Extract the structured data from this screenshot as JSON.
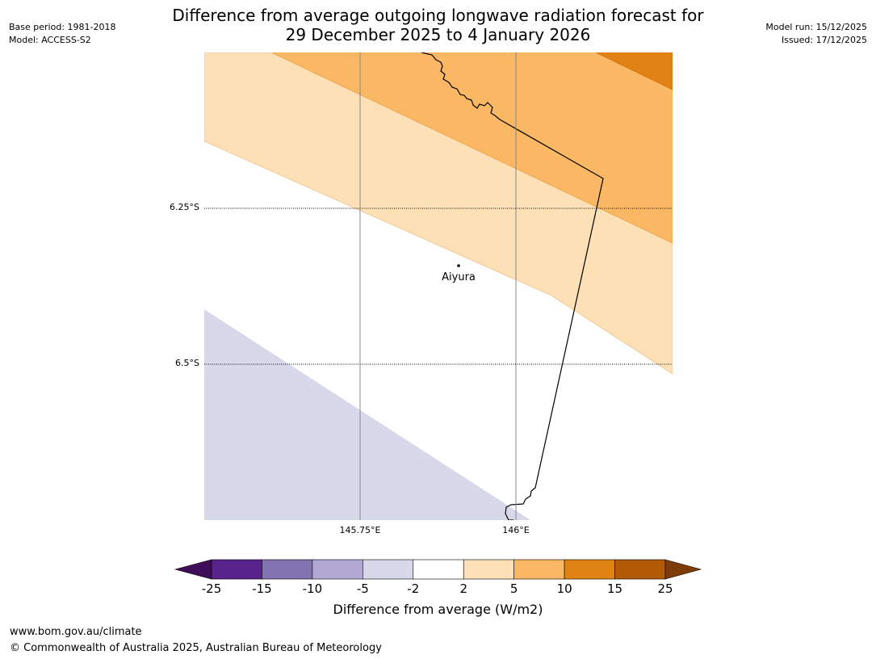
{
  "header": {
    "title_line1": "Difference from average outgoing longwave radiation forecast for",
    "title_line2": "29 December 2025 to 4 January 2026",
    "base_period": "Base period: 1981-2018",
    "model": "Model: ACCESS-S2",
    "model_run": "Model run: 15/12/2025",
    "issued": "Issued: 17/12/2025"
  },
  "map": {
    "lat_labels": [
      "6.25°S",
      "6.5°S"
    ],
    "lon_labels": [
      "145.75°E",
      "146°E"
    ],
    "place": "Aiyura"
  },
  "colorbar": {
    "label": "Difference from average (W/m2)",
    "ticks": [
      "-25",
      "-15",
      "-10",
      "-5",
      "-2",
      "2",
      "5",
      "10",
      "15",
      "25"
    ],
    "colors": [
      "#3f0d59",
      "#58238a",
      "#8373b0",
      "#b1a9d3",
      "#d8d8eb",
      "#ffffff",
      "#fde0b5",
      "#fbb864",
      "#e08214",
      "#b35a06",
      "#7f3b08"
    ]
  },
  "footer": {
    "website": "www.bom.gov.au/climate",
    "copyright": "© Commonwealth of Australia 2025, Australian Bureau of Meteorology"
  }
}
